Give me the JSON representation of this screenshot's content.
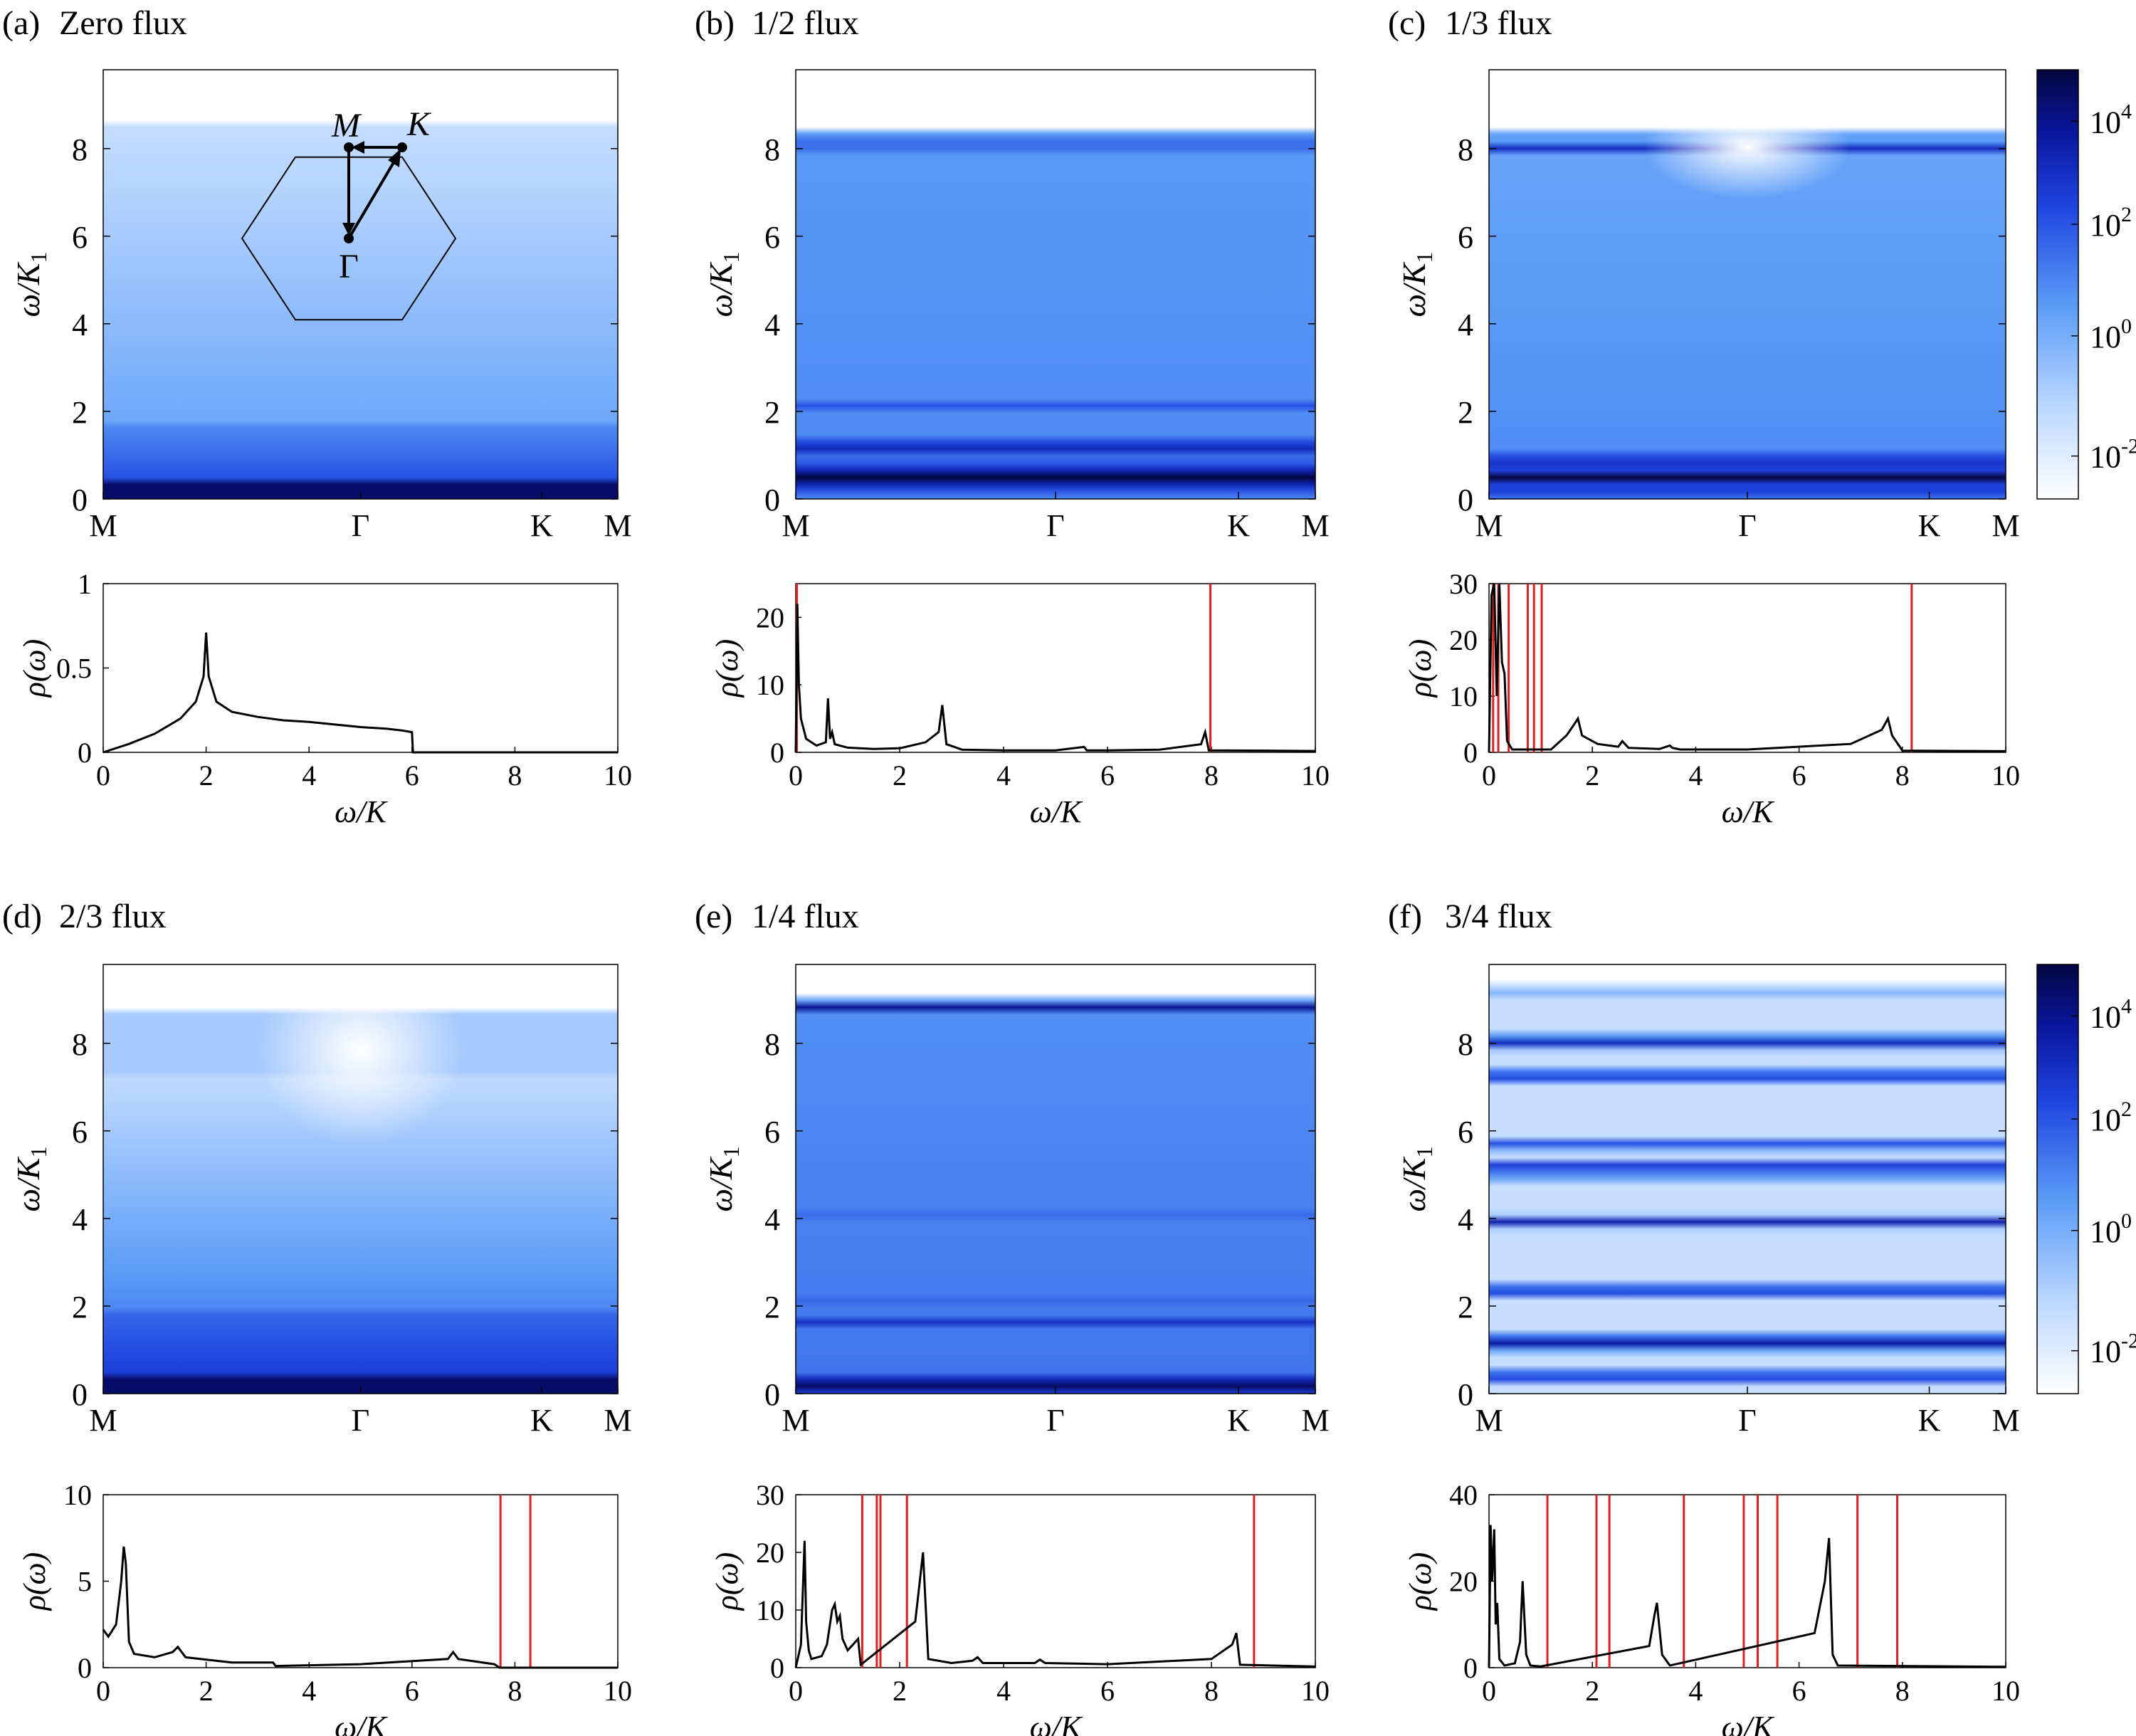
{
  "figure": {
    "colorbar": {
      "tick_labels": [
        "10^4",
        "10^2",
        "10^0",
        "10^-2"
      ],
      "colors": [
        "#ffffff",
        "#9fc6ff",
        "#3a7ef5",
        "#1a2fd6",
        "#050a55"
      ]
    },
    "y_label": "ω/K",
    "y_label_sub": "1",
    "rho_label": "ρ(ω)",
    "inset": {
      "labels": [
        "M",
        "K",
        "Γ"
      ]
    }
  },
  "chart_data": [
    {
      "id": "a",
      "type": "heatmap",
      "panel_label": "(a)",
      "title": "Zero flux",
      "x_ticks": [
        "M",
        "Γ",
        "K",
        "M"
      ],
      "y_ticks": [
        "0",
        "2",
        "4",
        "6",
        "8"
      ],
      "ylim": [
        0,
        9.8
      ],
      "dos": {
        "type": "line",
        "ylabel": "ρ(ω)",
        "xlabel": "ω/K1",
        "xlim": [
          0,
          10
        ],
        "ylim": [
          0,
          1
        ],
        "x_ticks": [
          "0",
          "2",
          "4",
          "6",
          "8",
          "10"
        ],
        "y_ticks": [
          "0",
          "0.5",
          "1"
        ],
        "x": [
          0,
          0.5,
          1,
          1.5,
          1.8,
          1.95,
          2.0,
          2.05,
          2.2,
          2.5,
          3,
          3.5,
          4,
          4.5,
          5,
          5.5,
          5.8,
          6.0,
          6.02,
          7,
          8,
          9,
          10
        ],
        "y": [
          0,
          0.05,
          0.11,
          0.2,
          0.3,
          0.45,
          0.71,
          0.45,
          0.3,
          0.24,
          0.21,
          0.19,
          0.18,
          0.165,
          0.15,
          0.14,
          0.13,
          0.12,
          0,
          0,
          0,
          0,
          0
        ],
        "red_lines": []
      }
    },
    {
      "id": "b",
      "type": "heatmap",
      "panel_label": "(b)",
      "title": "1/2 flux",
      "x_ticks": [
        "M",
        "Γ",
        "K",
        "M"
      ],
      "y_ticks": [
        "0",
        "2",
        "4",
        "6",
        "8"
      ],
      "ylim": [
        0,
        9.8
      ],
      "dos": {
        "type": "line",
        "ylabel": "ρ(ω)",
        "xlabel": "ω/K1",
        "xlim": [
          0,
          10
        ],
        "ylim": [
          0,
          25
        ],
        "x_ticks": [
          "0",
          "2",
          "4",
          "6",
          "8",
          "10"
        ],
        "y_ticks": [
          "0",
          "10",
          "20"
        ],
        "x": [
          0,
          0.03,
          0.06,
          0.1,
          0.2,
          0.4,
          0.58,
          0.62,
          0.66,
          0.7,
          0.75,
          1.0,
          1.5,
          2.0,
          2.5,
          2.75,
          2.82,
          2.9,
          3.2,
          4,
          5,
          5.55,
          5.6,
          6,
          7,
          7.8,
          7.88,
          7.95,
          10
        ],
        "y": [
          0,
          22,
          10,
          5,
          2,
          1,
          1.5,
          8,
          2,
          3,
          1.2,
          0.7,
          0.5,
          0.6,
          1.5,
          3,
          7,
          1.2,
          0.4,
          0.3,
          0.3,
          0.8,
          0.3,
          0.3,
          0.4,
          1.2,
          3,
          0.3,
          0.2
        ],
        "red_lines": [
          0.02,
          7.98
        ]
      }
    },
    {
      "id": "c",
      "type": "heatmap",
      "panel_label": "(c)",
      "title": "1/3 flux",
      "x_ticks": [
        "M",
        "Γ",
        "K",
        "M"
      ],
      "y_ticks": [
        "0",
        "2",
        "4",
        "6",
        "8"
      ],
      "ylim": [
        0,
        9.8
      ],
      "dos": {
        "type": "line",
        "ylabel": "ρ(ω)",
        "xlabel": "ω/K1",
        "xlim": [
          0,
          10
        ],
        "ylim": [
          0,
          30
        ],
        "x_ticks": [
          "0",
          "2",
          "4",
          "6",
          "8",
          "10"
        ],
        "y_ticks": [
          "0",
          "10",
          "20",
          "30"
        ],
        "x": [
          0,
          0.05,
          0.1,
          0.15,
          0.2,
          0.25,
          0.3,
          0.35,
          0.45,
          1.2,
          1.5,
          1.65,
          1.72,
          1.8,
          2.1,
          2.5,
          2.58,
          2.7,
          3.3,
          3.5,
          3.55,
          3.7,
          5,
          7,
          7.6,
          7.72,
          7.8,
          8.0,
          10
        ],
        "y": [
          0,
          28,
          30,
          10,
          30,
          16,
          14,
          2,
          0.5,
          0.5,
          3,
          5,
          6,
          3,
          1.5,
          1,
          2,
          0.8,
          0.6,
          1.2,
          0.8,
          0.5,
          0.5,
          1.5,
          4,
          6,
          3,
          0.3,
          0.2
        ],
        "red_lines": [
          0.08,
          0.18,
          0.38,
          0.75,
          0.87,
          1.02,
          8.18
        ]
      }
    },
    {
      "id": "d",
      "type": "heatmap",
      "panel_label": "(d)",
      "title": "2/3 flux",
      "x_ticks": [
        "M",
        "Γ",
        "K",
        "M"
      ],
      "y_ticks": [
        "0",
        "2",
        "4",
        "6",
        "8"
      ],
      "ylim": [
        0,
        9.8
      ],
      "dos": {
        "type": "line",
        "ylabel": "ρ(ω)",
        "xlabel": "ω/K1",
        "xlim": [
          0,
          10
        ],
        "ylim": [
          0,
          10
        ],
        "x_ticks": [
          "0",
          "2",
          "4",
          "6",
          "8",
          "10"
        ],
        "y_ticks": [
          "0",
          "5",
          "10"
        ],
        "x": [
          0,
          0.1,
          0.25,
          0.35,
          0.4,
          0.44,
          0.5,
          0.6,
          1.0,
          1.35,
          1.45,
          1.6,
          2.5,
          3.3,
          3.35,
          5,
          6.7,
          6.8,
          6.9,
          7.6,
          7.7,
          10
        ],
        "y": [
          2.2,
          1.8,
          2.5,
          5,
          7,
          6,
          1.5,
          0.8,
          0.6,
          0.9,
          1.2,
          0.6,
          0.3,
          0.3,
          0.1,
          0.2,
          0.5,
          0.9,
          0.5,
          0.2,
          0,
          0
        ],
        "red_lines": [
          7.72,
          8.3
        ]
      }
    },
    {
      "id": "e",
      "type": "heatmap",
      "panel_label": "(e)",
      "title": "1/4 flux",
      "x_ticks": [
        "M",
        "Γ",
        "K",
        "M"
      ],
      "y_ticks": [
        "0",
        "2",
        "4",
        "6",
        "8"
      ],
      "ylim": [
        0,
        9.8
      ],
      "dos": {
        "type": "line",
        "ylabel": "ρ(ω)",
        "xlabel": "ω/K1",
        "xlim": [
          0,
          10
        ],
        "ylim": [
          0,
          30
        ],
        "x_ticks": [
          "0",
          "2",
          "4",
          "6",
          "8",
          "10"
        ],
        "y_ticks": [
          "0",
          "10",
          "20",
          "30"
        ],
        "x": [
          0,
          0.1,
          0.17,
          0.2,
          0.25,
          0.3,
          0.5,
          0.6,
          0.7,
          0.75,
          0.8,
          0.85,
          0.9,
          1.0,
          1.1,
          1.2,
          1.25,
          2.3,
          2.4,
          2.45,
          2.55,
          3.0,
          3.4,
          3.5,
          3.6,
          4.6,
          4.7,
          4.8,
          6.0,
          8.0,
          8.4,
          8.48,
          8.55,
          10
        ],
        "y": [
          0,
          4,
          22,
          8,
          3,
          1.5,
          2,
          4,
          10,
          11,
          8,
          9,
          5,
          3,
          4,
          5,
          0.5,
          8,
          16,
          20,
          1.5,
          0.8,
          1.2,
          1.8,
          0.8,
          0.8,
          1.4,
          0.8,
          0.6,
          1.5,
          4,
          6,
          0.5,
          0.2
        ],
        "red_lines": [
          1.28,
          1.56,
          1.63,
          2.14,
          8.82
        ]
      }
    },
    {
      "id": "f",
      "type": "heatmap",
      "panel_label": "(f)",
      "title": "3/4 flux",
      "x_ticks": [
        "M",
        "Γ",
        "K",
        "M"
      ],
      "y_ticks": [
        "0",
        "2",
        "4",
        "6",
        "8"
      ],
      "ylim": [
        0,
        9.8
      ],
      "dos": {
        "type": "line",
        "ylabel": "ρ(ω)",
        "xlabel": "ω/K1",
        "xlim": [
          0,
          10
        ],
        "ylim": [
          0,
          40
        ],
        "x_ticks": [
          "0",
          "2",
          "4",
          "6",
          "8",
          "10"
        ],
        "y_ticks": [
          "0",
          "20",
          "40"
        ],
        "x": [
          0,
          0.03,
          0.06,
          0.1,
          0.13,
          0.16,
          0.2,
          0.3,
          0.5,
          0.6,
          0.65,
          0.72,
          0.8,
          1.0,
          3.1,
          3.2,
          3.25,
          3.35,
          3.5,
          6.3,
          6.5,
          6.58,
          6.65,
          6.75,
          10
        ],
        "y": [
          0,
          33,
          20,
          32,
          10,
          15,
          2,
          0.5,
          1,
          6,
          20,
          3,
          0.5,
          0.3,
          5,
          12,
          15,
          3,
          0.5,
          8,
          20,
          30,
          3,
          0.5,
          0.2
        ],
        "red_lines": [
          1.13,
          2.08,
          2.33,
          3.77,
          4.93,
          5.2,
          5.58,
          7.13,
          7.9
        ]
      }
    }
  ]
}
